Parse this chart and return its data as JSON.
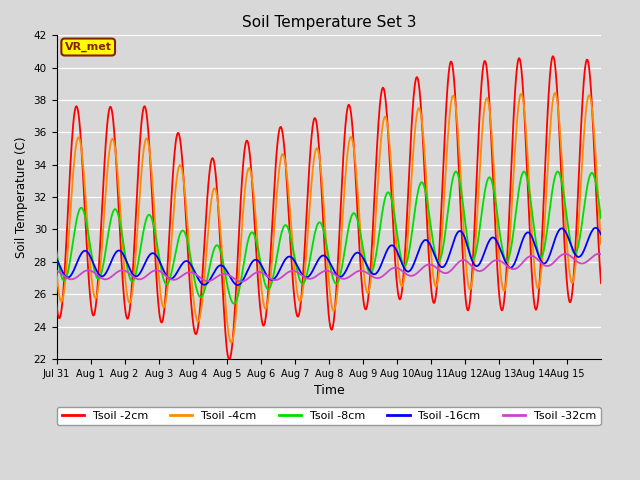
{
  "title": "Soil Temperature Set 3",
  "xlabel": "Time",
  "ylabel": "Soil Temperature (C)",
  "ylim": [
    22,
    42
  ],
  "yticks": [
    22,
    24,
    26,
    28,
    30,
    32,
    34,
    36,
    38,
    40,
    42
  ],
  "bg_color": "#d8d8d8",
  "grid_color": "#ffffff",
  "series_colors": {
    "2cm": "#ff0000",
    "4cm": "#ff8c00",
    "8cm": "#00dd00",
    "16cm": "#0000ff",
    "32cm": "#cc44cc"
  },
  "series_labels": [
    "Tsoil -2cm",
    "Tsoil -4cm",
    "Tsoil -8cm",
    "Tsoil -16cm",
    "Tsoil -32cm"
  ],
  "annotation_text": "VR_met",
  "annotation_bg": "#ffff00",
  "annotation_border": "#8b2000",
  "n_days": 16,
  "ppd": 144,
  "date_labels": [
    "Jul 31",
    "Aug 1",
    "Aug 2",
    "Aug 3",
    "Aug 4",
    "Aug 5",
    "Aug 6",
    "Aug 7",
    "Aug 8",
    "Aug 9",
    "Aug 10",
    "Aug 11",
    "Aug 12",
    "Aug 13",
    "Aug 14",
    "Aug 15"
  ],
  "peak_hour": 14.0,
  "series": {
    "2cm": {
      "amps": [
        6.5,
        6.5,
        6.5,
        6.7,
        5.5,
        6.2,
        6.2,
        5.8,
        6.8,
        6.5,
        6.8,
        7.0,
        8.0,
        7.5,
        8.0,
        7.5
      ],
      "means": [
        31.0,
        31.2,
        31.0,
        31.0,
        29.2,
        28.0,
        30.2,
        30.5,
        30.5,
        31.5,
        32.5,
        32.5,
        33.0,
        32.5,
        33.0,
        33.0
      ],
      "lag": 0.0
    },
    "4cm": {
      "amps": [
        5.0,
        5.0,
        5.0,
        5.2,
        4.2,
        4.8,
        4.8,
        4.5,
        5.2,
        5.0,
        5.5,
        5.5,
        6.2,
        5.8,
        6.2,
        5.8
      ],
      "means": [
        30.5,
        30.8,
        30.5,
        30.5,
        28.8,
        27.5,
        29.8,
        30.2,
        30.0,
        31.0,
        32.0,
        32.0,
        32.5,
        32.0,
        32.5,
        32.5
      ],
      "lag": 0.06
    },
    "8cm": {
      "amps": [
        2.2,
        2.2,
        2.2,
        2.0,
        1.8,
        1.8,
        2.0,
        1.8,
        2.0,
        2.0,
        2.5,
        2.5,
        2.8,
        2.5,
        2.8,
        2.5
      ],
      "means": [
        29.0,
        29.2,
        29.0,
        28.8,
        27.8,
        27.0,
        28.2,
        28.5,
        28.5,
        29.2,
        30.2,
        30.5,
        31.0,
        30.5,
        31.0,
        31.0
      ],
      "lag": 0.14
    },
    "16cm": {
      "amps": [
        0.8,
        0.8,
        0.8,
        0.7,
        0.65,
        0.65,
        0.7,
        0.65,
        0.7,
        0.7,
        0.9,
        0.9,
        1.1,
        0.9,
        1.1,
        0.9
      ],
      "means": [
        27.8,
        27.9,
        27.9,
        27.8,
        27.3,
        27.1,
        27.5,
        27.7,
        27.7,
        27.9,
        28.2,
        28.5,
        28.9,
        28.5,
        28.8,
        29.2
      ],
      "lag": 0.25
    },
    "32cm": {
      "amps": [
        0.28,
        0.28,
        0.28,
        0.28,
        0.25,
        0.25,
        0.28,
        0.25,
        0.25,
        0.25,
        0.3,
        0.3,
        0.38,
        0.3,
        0.38,
        0.3
      ],
      "means": [
        27.2,
        27.2,
        27.2,
        27.2,
        27.1,
        27.0,
        27.1,
        27.2,
        27.2,
        27.2,
        27.35,
        27.55,
        27.75,
        27.8,
        28.0,
        28.2
      ],
      "lag": 0.35
    }
  }
}
